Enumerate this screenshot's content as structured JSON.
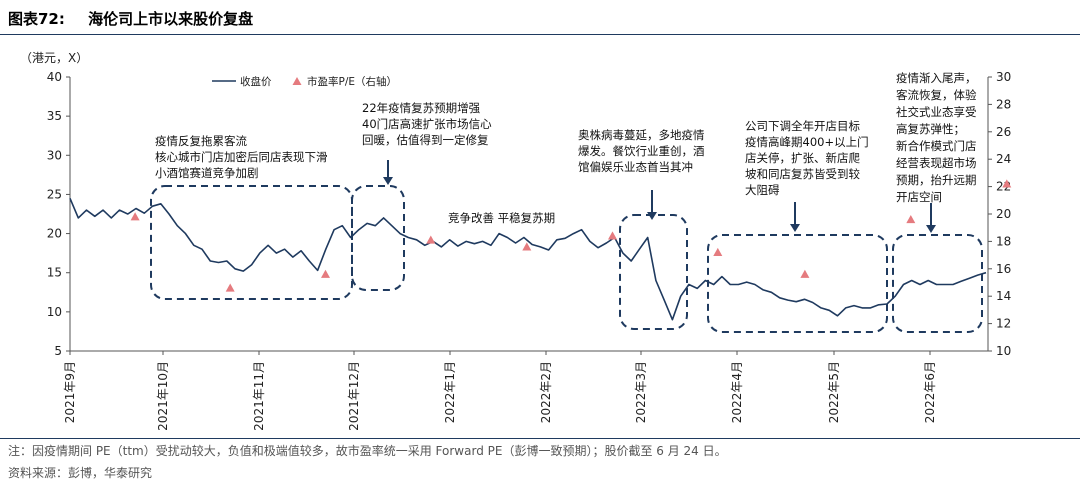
{
  "header": {
    "figure_no": "图表72:",
    "title": "海伦司上市以来股价复盘"
  },
  "note": "注：因疫情期间 PE（ttm）受扰动较大，负值和极端值较多，故市盈率统一采用 Forward PE（彭博一致预期）；股价截至 6 月 24 日。",
  "source": "资料来源：彭博，华泰研究",
  "colors": {
    "line": "#1f3a5f",
    "marker": "#e57b7f",
    "box": "#1f3a5f"
  },
  "chart_data": {
    "type": "line",
    "y_unit": "（港元，X）",
    "legend": [
      "收盘价",
      "市盈率P/E（右轴）"
    ],
    "legend_placement": "top-left",
    "ylim": [
      5,
      40
    ],
    "yticks": [
      5,
      10,
      15,
      20,
      25,
      30,
      35,
      40
    ],
    "y2lim": [
      10,
      30
    ],
    "y2ticks": [
      10,
      12,
      14,
      16,
      18,
      20,
      22,
      24,
      26,
      28,
      30
    ],
    "grid": false,
    "x_labels": [
      "2021年9月",
      "2021年10月",
      "2021年11月",
      "2021年12月",
      "2022年1月",
      "2022年2月",
      "2022年3月",
      "2022年4月",
      "2022年5月",
      "2022年6月"
    ],
    "series": [
      {
        "name": "收盘价",
        "type": "line",
        "values": [
          24.5,
          22.0,
          23.0,
          22.2,
          23.0,
          22.0,
          23.0,
          22.5,
          23.2,
          22.6,
          23.5,
          23.8,
          22.5,
          21.0,
          20.0,
          18.5,
          18.0,
          16.5,
          16.3,
          16.5,
          15.5,
          15.2,
          16.0,
          17.5,
          18.5,
          17.5,
          18.0,
          17.0,
          17.8,
          16.5,
          15.3,
          18.0,
          20.5,
          21.0,
          19.5,
          20.5,
          21.3,
          21.0,
          22.0,
          21.0,
          20.0,
          19.5,
          19.2,
          18.5,
          19.0,
          18.3,
          19.2,
          18.4,
          19.0,
          18.7,
          19.0,
          18.5,
          20.0,
          19.5,
          18.8,
          19.5,
          18.6,
          18.3,
          17.9,
          19.2,
          19.4,
          20.0,
          20.5,
          19.0,
          18.2,
          18.8,
          19.5,
          17.5,
          16.5,
          18.0,
          19.5,
          14.0,
          11.5,
          9.0,
          12.0,
          13.5,
          13.0,
          14.0,
          13.5,
          14.5,
          13.5,
          13.5,
          13.8,
          13.5,
          12.8,
          12.5,
          11.8,
          11.5,
          11.3,
          11.6,
          11.2,
          10.5,
          10.2,
          9.5,
          10.5,
          10.8,
          10.5,
          10.5,
          10.9,
          11.0,
          12.0,
          13.5,
          14.0,
          13.5,
          14.0,
          13.5,
          13.5,
          13.5,
          13.9,
          14.3,
          14.7,
          15.0
        ]
      },
      {
        "name": "市盈率P/E（右轴）",
        "type": "scatter",
        "points": [
          {
            "x": 0.7,
            "y": 19.8
          },
          {
            "x": 1.7,
            "y": 14.6
          },
          {
            "x": 2.7,
            "y": 15.6
          },
          {
            "x": 3.8,
            "y": 18.1
          },
          {
            "x": 4.8,
            "y": 17.6
          },
          {
            "x": 5.7,
            "y": 18.4
          },
          {
            "x": 6.8,
            "y": 17.2
          },
          {
            "x": 7.7,
            "y": 15.6
          },
          {
            "x": 8.8,
            "y": 19.6
          },
          {
            "x": 9.8,
            "y": 22.2
          }
        ]
      }
    ],
    "annotations": [
      {
        "lines": [
          "疫情反复拖累客流",
          "核心城市门店加密后同店表现下滑",
          "小酒馆赛道竞争加剧"
        ]
      },
      {
        "lines": [
          "22年疫情复苏预期增强",
          "40门店高速扩张市场信心",
          "回暖，估值得到一定修复"
        ]
      },
      {
        "lines": [
          "竞争改善  平稳复苏期"
        ]
      },
      {
        "lines": [
          "奥株病毒蔓延，多地疫情",
          "爆发。餐饮行业重创，酒",
          "馆偏娱乐业态首当其冲"
        ]
      },
      {
        "lines": [
          "公司下调全年开店目标",
          "疫情高峰期400+以上门",
          "店关停，扩张、新店爬",
          "坡和同店复苏皆受到较",
          "大阻碍"
        ]
      },
      {
        "lines": [
          "疫情渐入尾声，",
          "客流恢复，体验",
          "社交式业态享受",
          "高复苏弹性；",
          "新合作模式门店",
          "经营表现超市场",
          "预期，抬升远期",
          "开店空间"
        ]
      }
    ]
  }
}
